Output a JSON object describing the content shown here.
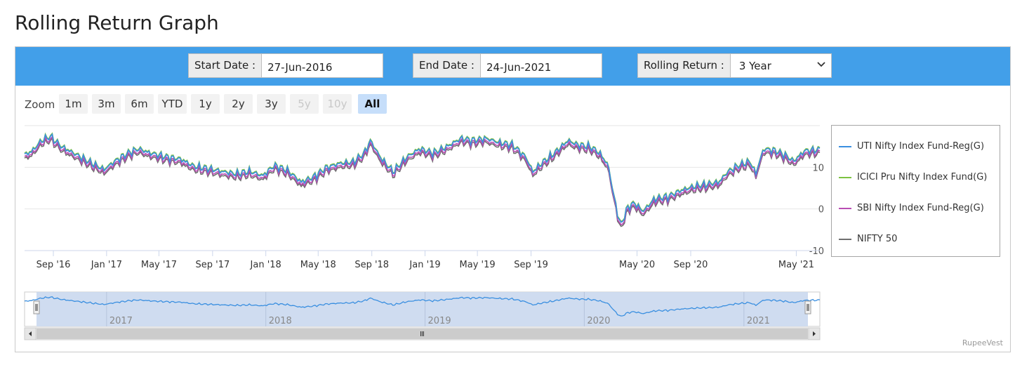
{
  "page": {
    "title": "Rolling Return Graph"
  },
  "controls": {
    "start_date": {
      "label": "Start Date :",
      "value": "27-Jun-2016"
    },
    "end_date": {
      "label": "End Date :",
      "value": "24-Jun-2021"
    },
    "rolling_return": {
      "label": "Rolling Return :",
      "selected": "3 Year"
    }
  },
  "zoom": {
    "label": "Zoom",
    "buttons": [
      {
        "label": "1m",
        "state": "normal"
      },
      {
        "label": "3m",
        "state": "normal"
      },
      {
        "label": "6m",
        "state": "normal"
      },
      {
        "label": "YTD",
        "state": "normal"
      },
      {
        "label": "1y",
        "state": "normal"
      },
      {
        "label": "2y",
        "state": "normal"
      },
      {
        "label": "3y",
        "state": "normal"
      },
      {
        "label": "5y",
        "state": "disabled"
      },
      {
        "label": "10y",
        "state": "disabled"
      },
      {
        "label": "All",
        "state": "selected"
      }
    ]
  },
  "credits": "RupeeVest",
  "colors": {
    "header_bar": "#429fe9",
    "navigator_fill": "#cad8ee"
  },
  "chart_data": {
    "type": "line",
    "x_range": [
      "2016-06-27",
      "2021-06-24"
    ],
    "y_ticks": [
      -10,
      0,
      10
    ],
    "ylim": [
      -10,
      20
    ],
    "grid": true,
    "legend_position": "right",
    "x_ticks": [
      {
        "date": "2016-09-01",
        "label": "Sep '16"
      },
      {
        "date": "2017-01-01",
        "label": "Jan '17"
      },
      {
        "date": "2017-05-01",
        "label": "May '17"
      },
      {
        "date": "2017-09-01",
        "label": "Sep '17"
      },
      {
        "date": "2018-01-01",
        "label": "Jan '18"
      },
      {
        "date": "2018-05-01",
        "label": "May '18"
      },
      {
        "date": "2018-09-01",
        "label": "Sep '18"
      },
      {
        "date": "2019-01-01",
        "label": "Jan '19"
      },
      {
        "date": "2019-05-01",
        "label": "May '19"
      },
      {
        "date": "2019-09-01",
        "label": "Sep '19"
      },
      {
        "date": "2020-05-01",
        "label": "May '20"
      },
      {
        "date": "2020-09-01",
        "label": "Sep '20"
      },
      {
        "date": "2021-05-01",
        "label": "May '21"
      }
    ],
    "navigator_ticks": [
      {
        "date": "2017-01-01",
        "label": "2017"
      },
      {
        "date": "2018-01-01",
        "label": "2018"
      },
      {
        "date": "2019-01-01",
        "label": "2019"
      },
      {
        "date": "2020-01-01",
        "label": "2020"
      },
      {
        "date": "2021-01-01",
        "label": "2021"
      }
    ],
    "series": [
      {
        "name": "UTI Nifty Index Fund-Reg(G)",
        "color": "#3a8fe0",
        "offset": 0.4
      },
      {
        "name": "ICICI Pru Nifty Index Fund(G)",
        "color": "#7cc242",
        "offset": 0.6
      },
      {
        "name": "SBI Nifty Index Fund-Reg(G)",
        "color": "#b94db4",
        "offset": -0.2
      },
      {
        "name": "NIFTY 50",
        "color": "#6f6f6f",
        "offset": -0.6
      }
    ],
    "base_points": [
      [
        "2016-06-27",
        12.5
      ],
      [
        "2016-07-15",
        13.5
      ],
      [
        "2016-08-05",
        16.0
      ],
      [
        "2016-08-25",
        17.0
      ],
      [
        "2016-09-20",
        14.5
      ],
      [
        "2016-10-20",
        12.8
      ],
      [
        "2016-11-20",
        11.0
      ],
      [
        "2016-12-26",
        9.0
      ],
      [
        "2017-01-20",
        11.0
      ],
      [
        "2017-02-20",
        13.0
      ],
      [
        "2017-03-15",
        14.0
      ],
      [
        "2017-04-10",
        13.0
      ],
      [
        "2017-05-20",
        12.0
      ],
      [
        "2017-06-20",
        11.5
      ],
      [
        "2017-07-20",
        9.8
      ],
      [
        "2017-08-20",
        9.3
      ],
      [
        "2017-09-25",
        8.5
      ],
      [
        "2017-10-25",
        8.0
      ],
      [
        "2017-11-25",
        8.6
      ],
      [
        "2017-12-25",
        7.5
      ],
      [
        "2018-01-20",
        10.0
      ],
      [
        "2018-02-20",
        8.8
      ],
      [
        "2018-03-23",
        6.0
      ],
      [
        "2018-04-20",
        7.2
      ],
      [
        "2018-05-20",
        9.5
      ],
      [
        "2018-06-20",
        10.5
      ],
      [
        "2018-07-20",
        10.8
      ],
      [
        "2018-08-15",
        13.0
      ],
      [
        "2018-08-29",
        16.0
      ],
      [
        "2018-09-20",
        12.0
      ],
      [
        "2018-10-20",
        8.5
      ],
      [
        "2018-11-20",
        12.0
      ],
      [
        "2018-12-20",
        14.0
      ],
      [
        "2019-01-20",
        13.0
      ],
      [
        "2019-02-20",
        14.5
      ],
      [
        "2019-03-25",
        16.5
      ],
      [
        "2019-04-20",
        16.0
      ],
      [
        "2019-05-20",
        16.5
      ],
      [
        "2019-06-20",
        15.5
      ],
      [
        "2019-07-20",
        15.0
      ],
      [
        "2019-08-20",
        12.0
      ],
      [
        "2019-09-05",
        8.5
      ],
      [
        "2019-09-25",
        10.5
      ],
      [
        "2019-10-25",
        13.0
      ],
      [
        "2019-11-25",
        16.0
      ],
      [
        "2019-12-15",
        15.0
      ],
      [
        "2020-01-15",
        14.5
      ],
      [
        "2020-02-05",
        13.0
      ],
      [
        "2020-02-25",
        10.0
      ],
      [
        "2020-03-10",
        2.0
      ],
      [
        "2020-03-24",
        -4.5
      ],
      [
        "2020-04-10",
        0.0
      ],
      [
        "2020-04-25",
        1.0
      ],
      [
        "2020-05-15",
        -1.0
      ],
      [
        "2020-06-10",
        2.0
      ],
      [
        "2020-07-10",
        2.5
      ],
      [
        "2020-08-10",
        4.0
      ],
      [
        "2020-09-10",
        5.0
      ],
      [
        "2020-10-10",
        5.5
      ],
      [
        "2020-11-05",
        6.0
      ],
      [
        "2020-11-25",
        8.5
      ],
      [
        "2020-12-20",
        10.0
      ],
      [
        "2021-01-15",
        11.0
      ],
      [
        "2021-01-28",
        8.0
      ],
      [
        "2021-02-15",
        14.0
      ],
      [
        "2021-03-15",
        13.5
      ],
      [
        "2021-04-05",
        12.5
      ],
      [
        "2021-04-25",
        11.0
      ],
      [
        "2021-05-20",
        13.5
      ],
      [
        "2021-06-24",
        13.8
      ]
    ]
  }
}
